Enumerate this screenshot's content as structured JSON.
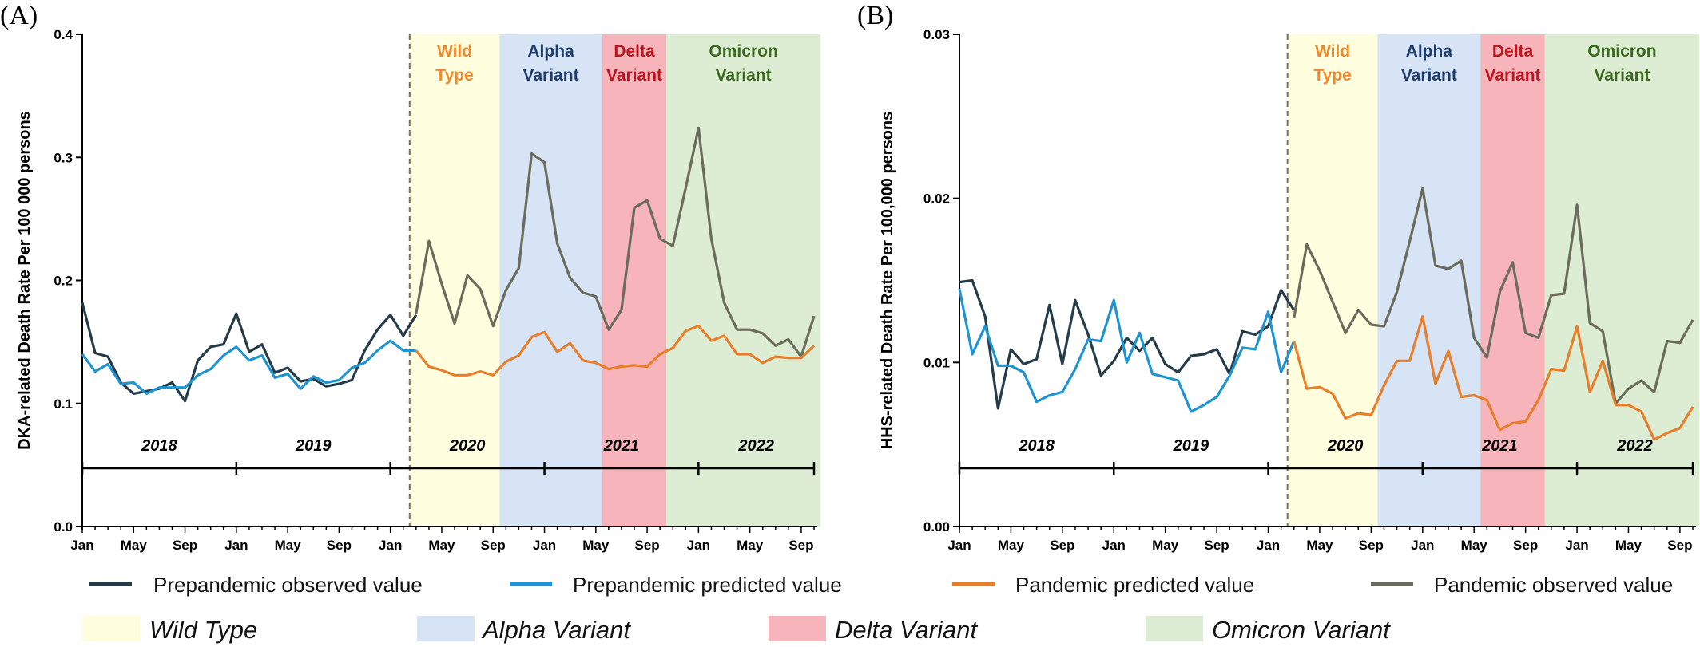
{
  "colors": {
    "prepandemic_observed": "#243b49",
    "prepandemic_predicted": "#1e94d2",
    "pandemic_predicted": "#e97e2a",
    "pandemic_observed": "#6b6b5c",
    "wild": "#ffffe0",
    "alpha": "#d6e4f5",
    "delta": "#f7b4bb",
    "omicron": "#dcedd3",
    "wild_text": "#f0892e",
    "alpha_text": "#1c3c6e",
    "delta_text": "#c0141c",
    "omicron_text": "#3a6a1e"
  },
  "month_ticks": [
    "Jan",
    "May",
    "Sep",
    "Jan",
    "May",
    "Sep",
    "Jan",
    "May",
    "Sep",
    "Jan",
    "May",
    "Sep",
    "Jan",
    "May",
    "Sep"
  ],
  "legend": {
    "prepandemic_observed": "Prepandemic observed value",
    "prepandemic_predicted": "Prepandemic predicted value",
    "pandemic_predicted": "Pandemic predicted value",
    "pandemic_observed": "Pandemic observed value",
    "wild": "Wild Type",
    "alpha": "Alpha Variant",
    "delta": "Delta Variant",
    "omicron": "Omicron Variant"
  },
  "chart_data": [
    {
      "type": "line",
      "panel": "(A)",
      "ylabel": "DKA-related Death Rate Per 100 000 persons",
      "ylim": [
        0,
        0.4
      ],
      "yticks": [
        "0.0",
        "0.1",
        "0.2",
        "0.3",
        "0.4"
      ],
      "ytick_values": [
        0,
        0.1,
        0.2,
        0.3,
        0.4
      ],
      "x_start": "2018-01",
      "years": [
        "2018",
        "2019",
        "2020",
        "2021",
        "2022"
      ],
      "eras": [
        {
          "key": "wild",
          "line1": "Wild",
          "line2": "Type",
          "from": "2020-03",
          "to": "2020-09"
        },
        {
          "key": "alpha",
          "line1": "Alpha",
          "line2": "Variant",
          "from": "2020-10",
          "to": "2021-05"
        },
        {
          "key": "delta",
          "line1": "Delta",
          "line2": "Variant",
          "from": "2021-06",
          "to": "2021-10"
        },
        {
          "key": "omicron",
          "line1": "Omicron",
          "line2": "Variant",
          "from": "2021-11",
          "to": "2022-10"
        }
      ],
      "series": [
        {
          "name": "Prepandemic observed value",
          "start": "2018-01",
          "values": [
            0.182,
            0.141,
            0.138,
            0.117,
            0.108,
            0.11,
            0.112,
            0.117,
            0.102,
            0.135,
            0.146,
            0.148,
            0.173,
            0.142,
            0.148,
            0.125,
            0.129,
            0.118,
            0.12,
            0.114,
            0.116,
            0.119,
            0.143,
            0.16,
            0.172,
            0.155,
            0.172
          ]
        },
        {
          "name": "Prepandemic predicted value",
          "start": "2018-01",
          "values": [
            0.14,
            0.126,
            0.132,
            0.116,
            0.117,
            0.108,
            0.113,
            0.113,
            0.113,
            0.123,
            0.128,
            0.139,
            0.146,
            0.135,
            0.139,
            0.121,
            0.124,
            0.112,
            0.122,
            0.117,
            0.119,
            0.129,
            0.133,
            0.143,
            0.151,
            0.143,
            0.143
          ]
        },
        {
          "name": "Pandemic observed value",
          "start": "2020-03",
          "values": [
            0.173,
            0.232,
            0.197,
            0.165,
            0.204,
            0.193,
            0.163,
            0.192,
            0.21,
            0.303,
            0.296,
            0.23,
            0.202,
            0.19,
            0.187,
            0.16,
            0.176,
            0.259,
            0.265,
            0.234,
            0.228,
            0.275,
            0.324,
            0.234,
            0.182,
            0.16,
            0.16,
            0.157,
            0.147,
            0.152,
            0.138,
            0.171
          ]
        },
        {
          "name": "Pandemic predicted value",
          "start": "2020-03",
          "values": [
            0.143,
            0.13,
            0.127,
            0.123,
            0.123,
            0.126,
            0.123,
            0.134,
            0.139,
            0.154,
            0.158,
            0.142,
            0.149,
            0.135,
            0.133,
            0.128,
            0.13,
            0.131,
            0.13,
            0.14,
            0.145,
            0.159,
            0.163,
            0.151,
            0.155,
            0.14,
            0.14,
            0.133,
            0.138,
            0.137,
            0.137,
            0.147
          ]
        }
      ]
    },
    {
      "type": "line",
      "panel": "(B)",
      "ylabel": "HHS-related Death Rate Per 100,000 persons",
      "ylim": [
        0,
        0.03
      ],
      "yticks": [
        "0.00",
        "0.01",
        "0.02",
        "0.03"
      ],
      "ytick_values": [
        0,
        0.01,
        0.02,
        0.03
      ],
      "x_start": "2018-01",
      "years": [
        "2018",
        "2019",
        "2020",
        "2021",
        "2022"
      ],
      "eras": [
        {
          "key": "wild",
          "line1": "Wild",
          "line2": "Type",
          "from": "2020-03",
          "to": "2020-09"
        },
        {
          "key": "alpha",
          "line1": "Alpha",
          "line2": "Variant",
          "from": "2020-10",
          "to": "2021-05"
        },
        {
          "key": "delta",
          "line1": "Delta",
          "line2": "Variant",
          "from": "2021-06",
          "to": "2021-10"
        },
        {
          "key": "omicron",
          "line1": "Omicron",
          "line2": "Variant",
          "from": "2021-11",
          "to": "2022-10"
        }
      ],
      "series": [
        {
          "name": "Prepandemic observed value",
          "start": "2018-01",
          "values": [
            0.0149,
            0.015,
            0.0128,
            0.0072,
            0.0108,
            0.0099,
            0.0102,
            0.0135,
            0.0099,
            0.0138,
            0.0117,
            0.0092,
            0.0101,
            0.0115,
            0.0107,
            0.0115,
            0.0099,
            0.0094,
            0.0104,
            0.0105,
            0.0108,
            0.0093,
            0.0119,
            0.0117,
            0.0122,
            0.0144,
            0.0132
          ]
        },
        {
          "name": "Prepandemic predicted value",
          "start": "2018-01",
          "values": [
            0.0145,
            0.0105,
            0.0122,
            0.0098,
            0.0098,
            0.0094,
            0.0076,
            0.008,
            0.0082,
            0.0096,
            0.0114,
            0.0113,
            0.0138,
            0.01,
            0.0118,
            0.0093,
            0.0091,
            0.0089,
            0.007,
            0.0074,
            0.0079,
            0.0092,
            0.0109,
            0.0108,
            0.0131,
            0.0094,
            0.0113
          ]
        },
        {
          "name": "Pandemic observed value",
          "start": "2020-03",
          "values": [
            0.0127,
            0.0172,
            0.0156,
            0.0137,
            0.0118,
            0.0132,
            0.0123,
            0.0122,
            0.0143,
            0.0174,
            0.0206,
            0.0159,
            0.0157,
            0.0162,
            0.0115,
            0.0103,
            0.0143,
            0.0161,
            0.0118,
            0.0115,
            0.0141,
            0.0142,
            0.0196,
            0.0124,
            0.0119,
            0.0075,
            0.0084,
            0.0089,
            0.0082,
            0.0113,
            0.0112,
            0.0126
          ]
        },
        {
          "name": "Pandemic predicted value",
          "start": "2020-03",
          "values": [
            0.0113,
            0.0084,
            0.0085,
            0.0081,
            0.0066,
            0.0069,
            0.0068,
            0.0086,
            0.0101,
            0.0101,
            0.0128,
            0.0087,
            0.0107,
            0.0079,
            0.008,
            0.0077,
            0.0059,
            0.0063,
            0.0064,
            0.0077,
            0.0096,
            0.0095,
            0.0122,
            0.0082,
            0.0101,
            0.0074,
            0.0074,
            0.007,
            0.0053,
            0.0057,
            0.006,
            0.0073
          ]
        }
      ]
    }
  ]
}
